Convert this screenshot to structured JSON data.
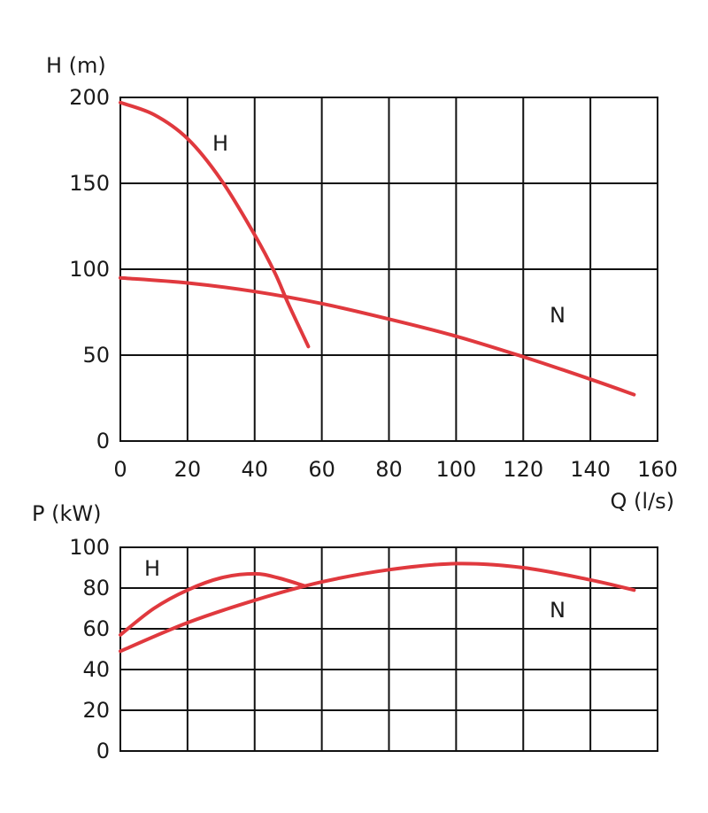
{
  "chart_data": [
    {
      "type": "line",
      "title": "",
      "ylabel": "H (m)",
      "xlabel": "Q (l/s)",
      "xlim": [
        0,
        160
      ],
      "ylim": [
        0,
        200
      ],
      "x_ticks": [
        0,
        20,
        40,
        60,
        80,
        100,
        120,
        140,
        160
      ],
      "y_ticks": [
        0,
        50,
        100,
        150,
        200
      ],
      "x_tick_labels": [
        "0",
        "20",
        "40",
        "60",
        "80",
        "100",
        "120",
        "140",
        "160"
      ],
      "y_tick_labels": [
        "0",
        "50",
        "100",
        "150",
        "200"
      ],
      "grid": true,
      "line_color": "#e0393e",
      "series": [
        {
          "name": "H",
          "points": [
            [
              0,
              197
            ],
            [
              10,
              190
            ],
            [
              20,
              176
            ],
            [
              30,
              152
            ],
            [
              40,
              120
            ],
            [
              46,
              98
            ],
            [
              50,
              80
            ],
            [
              56,
              55
            ]
          ]
        },
        {
          "name": "N",
          "points": [
            [
              0,
              95
            ],
            [
              20,
              92
            ],
            [
              40,
              87
            ],
            [
              60,
              80
            ],
            [
              80,
              71
            ],
            [
              100,
              61
            ],
            [
              120,
              49
            ],
            [
              140,
              36
            ],
            [
              153,
              27
            ]
          ]
        }
      ]
    },
    {
      "type": "line",
      "title": "",
      "ylabel": "P (kW)",
      "xlabel": "",
      "xlim": [
        0,
        160
      ],
      "ylim": [
        0,
        100
      ],
      "x_ticks": [
        0,
        20,
        40,
        60,
        80,
        100,
        120,
        140,
        160
      ],
      "y_ticks": [
        0,
        20,
        40,
        60,
        80,
        100
      ],
      "y_tick_labels": [
        "0",
        "20",
        "40",
        "60",
        "80",
        "100"
      ],
      "grid": true,
      "line_color": "#e0393e",
      "series": [
        {
          "name": "H",
          "points": [
            [
              0,
              57
            ],
            [
              10,
              70
            ],
            [
              20,
              79
            ],
            [
              30,
              85
            ],
            [
              40,
              87
            ],
            [
              47,
              85
            ],
            [
              55,
              81
            ]
          ]
        },
        {
          "name": "N",
          "points": [
            [
              0,
              49
            ],
            [
              20,
              63
            ],
            [
              40,
              74
            ],
            [
              60,
              83
            ],
            [
              80,
              89
            ],
            [
              100,
              92
            ],
            [
              120,
              90
            ],
            [
              140,
              84
            ],
            [
              153,
              79
            ]
          ]
        }
      ]
    }
  ]
}
